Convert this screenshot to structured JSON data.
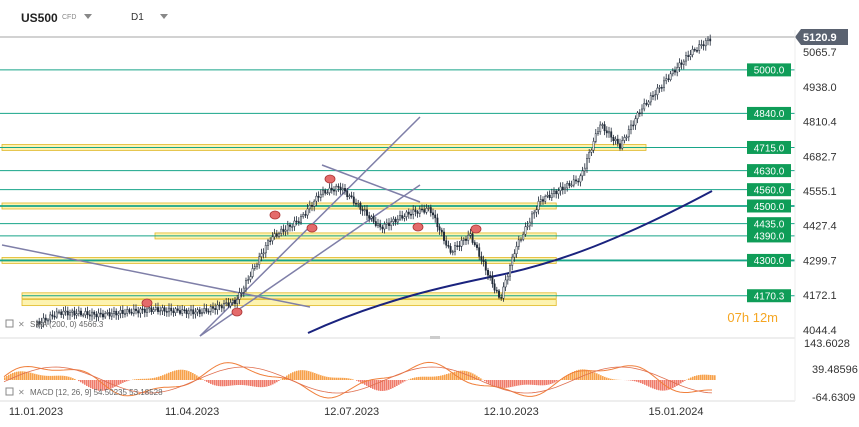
{
  "header": {
    "symbol": "US500",
    "instrument_type": "CFD",
    "timeframe": "D1"
  },
  "overlay": {
    "sma_label": "SMA (200, 0)",
    "sma_value": "4566.3",
    "countdown": "07h 12m",
    "macd_label": "MACD [12, 26, 9]",
    "macd_values": [
      "54.50235",
      "53.18528"
    ]
  },
  "colors": {
    "up_candle": "#1f2937",
    "down_candle": "#1f2937",
    "support_line": "#17a589",
    "label_bg": "#0f9d58",
    "zone_fill": "#fdf3b0",
    "zone_border": "#e0b92a",
    "sma_line": "#1a237e",
    "channel_line": "#7f7fa8",
    "last_price_bg": "#5a6270",
    "countdown": "#f5a623",
    "macd_main": "#f0803c",
    "macd_signal": "#e07050",
    "macd_hist_pos": "#f7a14a",
    "macd_hist_neg": "#ef7b6b"
  },
  "chart_data": {
    "type": "candlestick",
    "title": "US500",
    "timeframe": "D1",
    "x_labels": [
      "11.01.2023",
      "11.04.2023",
      "12.07.2023",
      "12.10.2023",
      "15.01.2024"
    ],
    "y_ticks": [
      5065.7,
      4938.0,
      4810.4,
      4682.7,
      4555.1,
      4427.4,
      4299.7,
      4172.1,
      4044.4
    ],
    "ylim": [
      4044.4,
      5140
    ],
    "last_price": 5120.9,
    "horizontal_levels": [
      5000.0,
      4840.0,
      4715.0,
      4630.0,
      4560.0,
      4500.0,
      4435.0,
      4390.0,
      4300.0,
      4170.3
    ],
    "level_labels": [
      "5000.0",
      "4840.0",
      "4715.0",
      "4630.0",
      "4560.0",
      "4500.0",
      "4435.0",
      "4390.0",
      "4300.0",
      "4170.3"
    ],
    "zones": [
      {
        "from": "11.01.2023",
        "to": "15.01.2024",
        "level": 4715.0
      },
      {
        "from": "11.01.2023",
        "to": "12.10.2023",
        "level": 4500.0
      },
      {
        "from": "11.04.2023",
        "to": "12.10.2023",
        "level": 4390.0
      },
      {
        "from": "11.01.2023",
        "to": "12.10.2023",
        "level": 4300.0
      },
      {
        "from": "11.01.2023",
        "to": "12.10.2023",
        "level": 4170.0
      },
      {
        "from": "11.01.2023",
        "to": "12.10.2023",
        "level": 4145.0
      }
    ],
    "price_series": {
      "name": "US500",
      "dates": [
        "11.01.2023",
        "11.04.2023",
        "12.07.2023",
        "12.10.2023",
        "15.01.2024"
      ],
      "closes": [
        4065,
        4125,
        4545,
        4360,
        5120.9
      ]
    },
    "sma": {
      "name": "SMA (200, 0)",
      "period": 200,
      "value": 4566.3
    },
    "macd_panel": {
      "name": "MACD [12, 26, 9]",
      "y_ticks": [
        143.6028,
        39.48596,
        -64.6309
      ],
      "values": [
        54.50235,
        53.18528
      ]
    },
    "grid": false
  }
}
